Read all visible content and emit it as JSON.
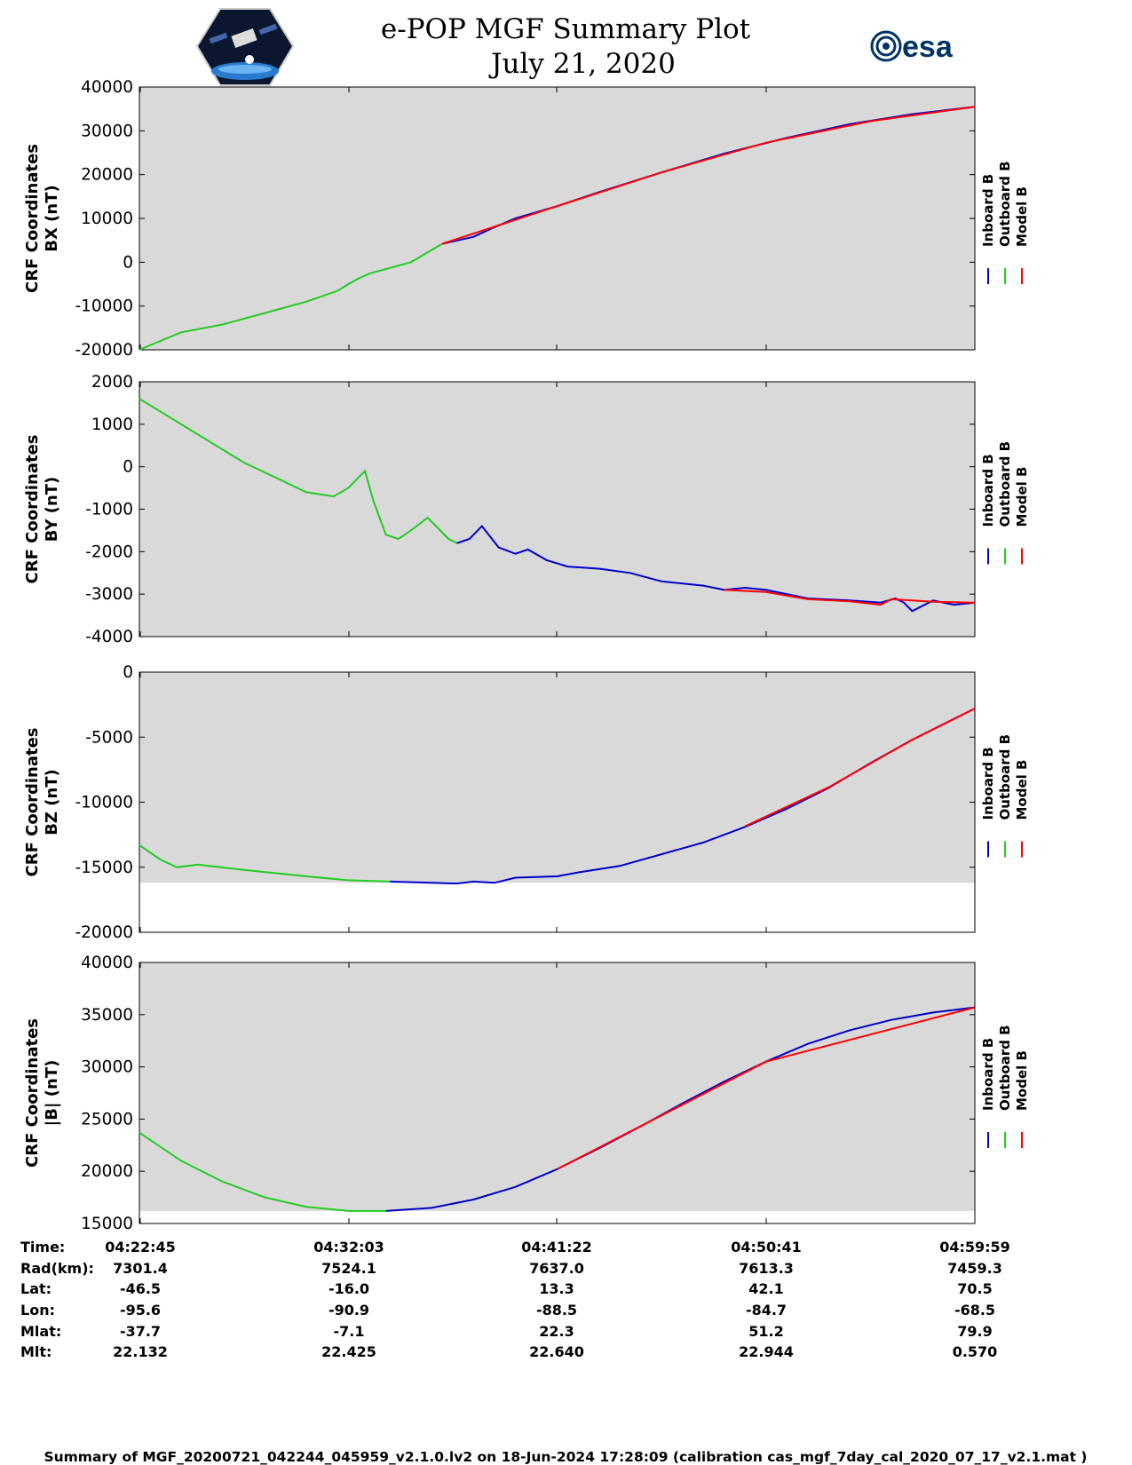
{
  "title": "e-POP MGF Summary Plot",
  "date": "July 21, 2020",
  "logo_right_text": "esa",
  "footer": "Summary of MGF_20200721_042244_045959_v2.1.0.lv2 on 18-Jun-2024 17:28:09 (calibration cas_mgf_7day_cal_2020_07_17_v2.1.mat )",
  "colors": {
    "inboard": "#0000cc",
    "outboard": "#22cc22",
    "model": "#ff0000",
    "panel_bg": "#d9d9d9"
  },
  "legend": [
    {
      "label": "Inboard B",
      "color": "#0000cc"
    },
    {
      "label": "Outboard B",
      "color": "#22cc22"
    },
    {
      "label": "Model B",
      "color": "#ff0000"
    }
  ],
  "table": {
    "row_labels": [
      "Time:",
      "Rad(km):",
      "Lat:",
      "Lon:",
      "Mlat:",
      "Mlt:"
    ],
    "columns": [
      [
        "04:22:45",
        "7301.4",
        "-46.5",
        "-95.6",
        "-37.7",
        "22.132"
      ],
      [
        "04:32:03",
        "7524.1",
        "-16.0",
        "-90.9",
        "-7.1",
        "22.425"
      ],
      [
        "04:41:22",
        "7637.0",
        "13.3",
        "-88.5",
        "22.3",
        "22.640"
      ],
      [
        "04:50:41",
        "7613.3",
        "42.1",
        "-84.7",
        "51.2",
        "22.944"
      ],
      [
        "04:59:59",
        "7459.3",
        "70.5",
        "-68.5",
        "79.9",
        "0.570"
      ]
    ]
  },
  "chart_data": [
    {
      "type": "line",
      "ylabel_line1": "CRF Coordinates",
      "ylabel_line2": "BX (nT)",
      "ylim": [
        -20000,
        40000
      ],
      "yticks": [
        -20000,
        -10000,
        0,
        10000,
        20000,
        30000,
        40000
      ],
      "xlim": [
        0,
        4
      ],
      "shade_to": -20000,
      "series": [
        {
          "name": "Outboard B",
          "x": [
            0,
            0.1,
            0.2,
            0.4,
            0.6,
            0.8,
            0.95,
            1.0,
            1.05,
            1.1,
            1.3,
            1.45
          ],
          "y": [
            -20000,
            -18000,
            -16000,
            -14200,
            -11600,
            -9000,
            -6500,
            -5000,
            -3700,
            -2600,
            0,
            4200
          ]
        },
        {
          "name": "Inboard B",
          "x": [
            1.45,
            1.6,
            1.7,
            1.8,
            2.0,
            2.2,
            2.5,
            2.8,
            3.1,
            3.4,
            3.7,
            4.0
          ],
          "y": [
            4200,
            5800,
            8000,
            10000,
            12800,
            16000,
            20500,
            24800,
            28400,
            31500,
            33800,
            35500
          ]
        },
        {
          "name": "Model B",
          "x": [
            1.45,
            2.0,
            2.5,
            3.0,
            3.5,
            4.0
          ],
          "y": [
            4200,
            12800,
            20500,
            27300,
            32200,
            35500
          ]
        }
      ]
    },
    {
      "type": "line",
      "ylabel_line1": "CRF Coordinates",
      "ylabel_line2": "BY (nT)",
      "ylim": [
        -4000,
        2000
      ],
      "yticks": [
        -4000,
        -3000,
        -2000,
        -1000,
        0,
        1000,
        2000
      ],
      "xlim": [
        0,
        4
      ],
      "shade_to": -4000,
      "series": [
        {
          "name": "Outboard B",
          "x": [
            0,
            0.2,
            0.5,
            0.8,
            0.93,
            1.0,
            1.06,
            1.08,
            1.12,
            1.18,
            1.24,
            1.3,
            1.38,
            1.42,
            1.48,
            1.52
          ],
          "y": [
            1600,
            1000,
            100,
            -600,
            -700,
            -500,
            -200,
            -100,
            -800,
            -1600,
            -1700,
            -1500,
            -1200,
            -1400,
            -1700,
            -1800
          ]
        },
        {
          "name": "Inboard B",
          "x": [
            1.52,
            1.58,
            1.64,
            1.72,
            1.8,
            1.86,
            1.95,
            2.05,
            2.2,
            2.35,
            2.5,
            2.7,
            2.8,
            2.9,
            3.0,
            3.2,
            3.4,
            3.55,
            3.62,
            3.66,
            3.7,
            3.8,
            3.9,
            4.0
          ],
          "y": [
            -1800,
            -1700,
            -1400,
            -1900,
            -2050,
            -1950,
            -2200,
            -2350,
            -2400,
            -2500,
            -2700,
            -2800,
            -2900,
            -2850,
            -2900,
            -3100,
            -3150,
            -3200,
            -3100,
            -3200,
            -3400,
            -3150,
            -3250,
            -3200
          ]
        },
        {
          "name": "Model B",
          "x": [
            2.8,
            3.0,
            3.2,
            3.4,
            3.55,
            3.6,
            3.7,
            3.8,
            4.0
          ],
          "y": [
            -2900,
            -2950,
            -3120,
            -3170,
            -3250,
            -3120,
            -3150,
            -3180,
            -3200
          ]
        }
      ]
    },
    {
      "type": "line",
      "ylabel_line1": "CRF Coordinates",
      "ylabel_line2": "BZ (nT)",
      "ylim": [
        -20000,
        0
      ],
      "yticks": [
        -20000,
        -15000,
        -10000,
        -5000,
        0
      ],
      "xlim": [
        0,
        4
      ],
      "shade_to": -16200,
      "series": [
        {
          "name": "Outboard B",
          "x": [
            0,
            0.1,
            0.18,
            0.28,
            0.5,
            0.8,
            1.0,
            1.2
          ],
          "y": [
            -13300,
            -14400,
            -15000,
            -14800,
            -15200,
            -15700,
            -16000,
            -16100
          ]
        },
        {
          "name": "Inboard B",
          "x": [
            1.2,
            1.4,
            1.52,
            1.6,
            1.7,
            1.8,
            2.0,
            2.1,
            2.3,
            2.5,
            2.7,
            2.9,
            3.1,
            3.3,
            3.5,
            3.7,
            3.9,
            4.0
          ],
          "y": [
            -16100,
            -16200,
            -16250,
            -16100,
            -16200,
            -15800,
            -15700,
            -15400,
            -14900,
            -14000,
            -13100,
            -11900,
            -10500,
            -8900,
            -7000,
            -5200,
            -3600,
            -2800
          ]
        },
        {
          "name": "Model B",
          "x": [
            2.9,
            3.3,
            3.7,
            4.0
          ],
          "y": [
            -11850,
            -8850,
            -5200,
            -2800
          ]
        }
      ]
    },
    {
      "type": "line",
      "ylabel_line1": "CRF Coordinates",
      "ylabel_line2": "|B| (nT)",
      "ylim": [
        15000,
        40000
      ],
      "yticks": [
        15000,
        20000,
        25000,
        30000,
        35000,
        40000
      ],
      "xlim": [
        0,
        4
      ],
      "shade_to": 16200,
      "series": [
        {
          "name": "Outboard B",
          "x": [
            0,
            0.2,
            0.4,
            0.6,
            0.8,
            1.0,
            1.18
          ],
          "y": [
            23700,
            21000,
            19000,
            17500,
            16600,
            16200,
            16200
          ]
        },
        {
          "name": "Inboard B",
          "x": [
            1.18,
            1.4,
            1.6,
            1.8,
            2.0,
            2.2,
            2.4,
            2.6,
            2.8,
            3.0,
            3.2,
            3.4,
            3.6,
            3.8,
            4.0
          ],
          "y": [
            16200,
            16500,
            17300,
            18500,
            20200,
            22200,
            24300,
            26500,
            28600,
            30500,
            32200,
            33500,
            34500,
            35200,
            35700
          ]
        },
        {
          "name": "Model B",
          "x": [
            2.0,
            3.0,
            4.0
          ],
          "y": [
            20200,
            30500,
            35700
          ]
        }
      ]
    }
  ]
}
